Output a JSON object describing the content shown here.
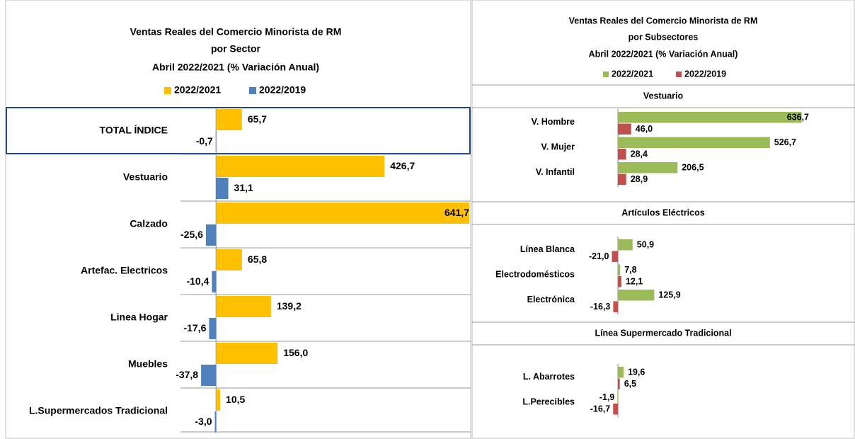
{
  "chart_data": [
    {
      "type": "bar",
      "orientation": "horizontal",
      "title": [
        "Ventas Reales del Comercio Minorista de RM",
        "por Sector",
        "Abril 2022/2021 (% Variación Anual)"
      ],
      "categories": [
        "TOTAL ÍNDICE",
        "Vestuario",
        "Calzado",
        "Artefac. Electricos",
        "Linea Hogar",
        "Muebles",
        "L.Supermercados Tradicional"
      ],
      "series": [
        {
          "name": "2022/2021",
          "color": "#FFC000",
          "values": [
            65.7,
            426.7,
            641.7,
            65.8,
            139.2,
            156.0,
            10.5
          ],
          "value_labels": [
            "65,7",
            "426,7",
            "641,7",
            "65,8",
            "139,2",
            "156,0",
            "10,5"
          ]
        },
        {
          "name": "2022/2019",
          "color": "#4F81BD",
          "values": [
            -0.7,
            31.1,
            -25.6,
            -10.4,
            -17.6,
            -37.8,
            -3.0
          ],
          "value_labels": [
            "-0,7",
            "31,1",
            "-25,6",
            "-10,4",
            "-17,6",
            "-37,8",
            "-3,0"
          ]
        }
      ],
      "xlim": [
        -90,
        645
      ],
      "legend": "top"
    },
    {
      "type": "bar",
      "orientation": "horizontal",
      "title": [
        "Ventas Reales del Comercio Minorista de RM",
        "por Subsectores",
        "Abril 2022/2021 (% Variación Anual)"
      ],
      "groups": [
        {
          "name": "Vestuario",
          "categories": [
            "V. Hombre",
            "V. Mujer",
            "V. Infantil"
          ]
        },
        {
          "name": "Artículos Eléctricos",
          "categories": [
            "Línea Blanca",
            "Electrodomésticos",
            "Electrónica"
          ]
        },
        {
          "name": "Línea Supermercado Tradicional",
          "categories": [
            "L. Abarrotes",
            "L.Perecibles"
          ]
        }
      ],
      "series": [
        {
          "name": "2022/2021",
          "color": "#9BBB59",
          "values": [
            636.7,
            526.7,
            206.5,
            50.9,
            7.8,
            125.9,
            19.6,
            -1.9
          ],
          "value_labels": [
            "636,7",
            "526,7",
            "206,5",
            "50,9",
            "7,8",
            "125,9",
            "19,6",
            "-1,9"
          ]
        },
        {
          "name": "2022/2019",
          "color": "#C0504D",
          "values": [
            46.0,
            28.4,
            28.9,
            -21.0,
            12.1,
            -16.3,
            6.5,
            -16.7
          ],
          "value_labels": [
            "46,0",
            "28,4",
            "28,9",
            "-21,0",
            "12,1",
            "-16,3",
            "6,5",
            "-16,7"
          ]
        }
      ],
      "xlim": [
        -32,
        667
      ],
      "legend": "top"
    }
  ]
}
